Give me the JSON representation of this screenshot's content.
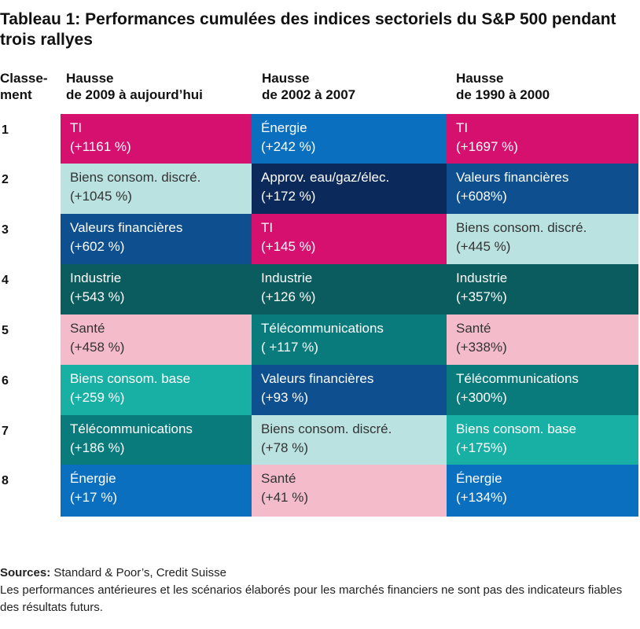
{
  "title": "Tableau 1: Performances cumulées des indices sectoriels du S&P 500 pendant trois rallyes",
  "headers": {
    "rank_line1": "Classe-",
    "rank_line2": "ment",
    "cols": [
      {
        "line1": "Hausse",
        "line2": "de 2009 à aujourd’hui"
      },
      {
        "line1": "Hausse",
        "line2": "de 2002 à 2007"
      },
      {
        "line1": "Hausse",
        "line2": "de 1990 à 2000"
      }
    ]
  },
  "colors": {
    "TI": "#d5106f",
    "Energie": "#0a6fbf",
    "BiensConsomDiscre": "#b9e2e0",
    "ApprovEau": "#0b2a5b",
    "ValeursFinancieres": "#0d4f8f",
    "Industrie": "#0b5c5e",
    "Sante": "#f4bccb",
    "Telecom": "#0a7b7c",
    "BiensConsomBase": "#18b0a4"
  },
  "chart_data": {
    "type": "table",
    "title": "Tableau 1: Performances cumulées des indices sectoriels du S&P 500 pendant trois rallyes",
    "columns": [
      "Hausse de 2009 à aujourd’hui",
      "Hausse de 2002 à 2007",
      "Hausse de 1990 à 2000"
    ],
    "ranks": [
      "1",
      "2",
      "3",
      "4",
      "5",
      "6",
      "7",
      "8"
    ],
    "rows": [
      [
        {
          "sector": "TI",
          "value": "(+1161 %)",
          "color": "#d5106f",
          "text": "#ffffff"
        },
        {
          "sector": "Énergie",
          "value": "(+242 %)",
          "color": "#0a6fbf",
          "text": "#ffffff"
        },
        {
          "sector": "TI",
          "value": "(+1697 %)",
          "color": "#d5106f",
          "text": "#ffffff"
        }
      ],
      [
        {
          "sector": "Biens consom. discré.",
          "value": "(+1045 %)",
          "color": "#b9e2e0",
          "text": "#333333"
        },
        {
          "sector": "Approv. eau/gaz/élec.",
          "value": "(+172 %)",
          "color": "#0b2a5b",
          "text": "#ffffff"
        },
        {
          "sector": "Valeurs financières",
          "value": "(+608%)",
          "color": "#0d4f8f",
          "text": "#ffffff"
        }
      ],
      [
        {
          "sector": "Valeurs financières",
          "value": "(+602 %)",
          "color": "#0d4f8f",
          "text": "#ffffff"
        },
        {
          "sector": "TI",
          "value": "(+145 %)",
          "color": "#d5106f",
          "text": "#ffffff"
        },
        {
          "sector": "Biens consom. discré.",
          "value": "(+445 %)",
          "color": "#b9e2e0",
          "text": "#333333"
        }
      ],
      [
        {
          "sector": "Industrie",
          "value": "(+543 %)",
          "color": "#0b5c5e",
          "text": "#ffffff"
        },
        {
          "sector": "Industrie",
          "value": "(+126 %)",
          "color": "#0b5c5e",
          "text": "#ffffff"
        },
        {
          "sector": "Industrie",
          "value": "(+357%)",
          "color": "#0b5c5e",
          "text": "#ffffff"
        }
      ],
      [
        {
          "sector": "Santé",
          "value": "(+458 %)",
          "color": "#f4bccb",
          "text": "#333333"
        },
        {
          "sector": "Télécommunications",
          "value": "( +117 %)",
          "color": "#0a7b7c",
          "text": "#ffffff"
        },
        {
          "sector": "Santé",
          "value": "(+338%)",
          "color": "#f4bccb",
          "text": "#333333"
        }
      ],
      [
        {
          "sector": "Biens consom. base",
          "value": "(+259 %)",
          "color": "#18b0a4",
          "text": "#ffffff"
        },
        {
          "sector": "Valeurs financières",
          "value": "(+93 %)",
          "color": "#0d4f8f",
          "text": "#ffffff"
        },
        {
          "sector": "Télécommunications",
          "value": "(+300%)",
          "color": "#0a7b7c",
          "text": "#ffffff"
        }
      ],
      [
        {
          "sector": "Télécommunications",
          "value": "(+186 %)",
          "color": "#0a7b7c",
          "text": "#ffffff"
        },
        {
          "sector": "Biens consom. discré.",
          "value": "(+78 %)",
          "color": "#b9e2e0",
          "text": "#333333"
        },
        {
          "sector": "Biens consom. base",
          "value": "(+175%)",
          "color": "#18b0a4",
          "text": "#ffffff"
        }
      ],
      [
        {
          "sector": "Énergie",
          "value": "(+17 %)",
          "color": "#0a6fbf",
          "text": "#ffffff"
        },
        {
          "sector": "Santé",
          "value": "(+41 %)",
          "color": "#f4bccb",
          "text": "#333333"
        },
        {
          "sector": "Énergie",
          "value": "(+134%)",
          "color": "#0a6fbf",
          "text": "#ffffff"
        }
      ]
    ]
  },
  "footer": {
    "sources_label": "Sources:",
    "sources_text": " Standard & Poor’s, Credit Suisse",
    "disclaimer": "Les performances antérieures et les scénarios élaborés pour les marchés financiers ne sont pas des indicateurs fiables des résultats futurs."
  }
}
